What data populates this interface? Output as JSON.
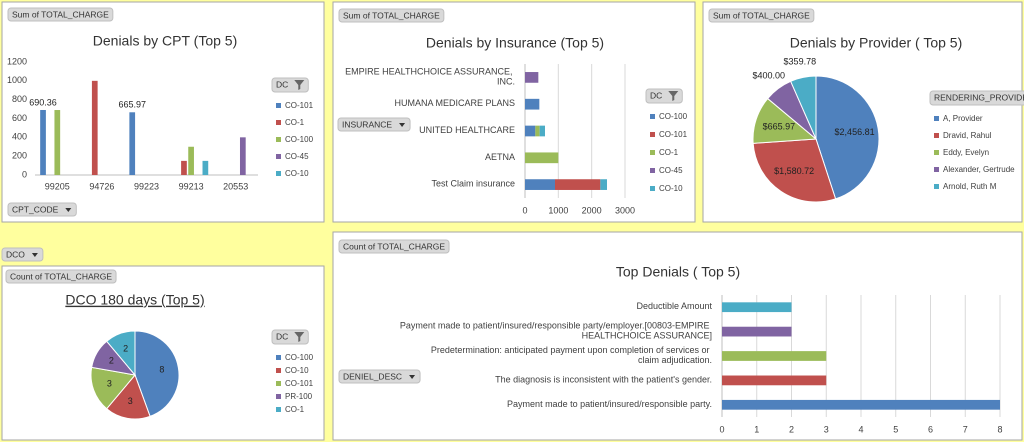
{
  "chart_data": [
    {
      "type": "bar",
      "title": "Denials by CPT (Top 5)",
      "value_field": "Sum of TOTAL_CHARGE",
      "axis_field": "CPT_CODE",
      "legend_title": "DC",
      "categories": [
        "99205",
        "94726",
        "99223",
        "99213",
        "20553"
      ],
      "series": [
        {
          "name": "CO-101",
          "color": "#4f81bd",
          "values": [
            690.36,
            null,
            665.97,
            null,
            null
          ],
          "labels": true
        },
        {
          "name": "CO-1",
          "color": "#c0504d",
          "values": [
            null,
            1000,
            null,
            150,
            null
          ]
        },
        {
          "name": "CO-100",
          "color": "#9bbb59",
          "values": [
            690,
            null,
            null,
            300,
            null
          ]
        },
        {
          "name": "CO-45",
          "color": "#8064a2",
          "values": [
            null,
            null,
            null,
            null,
            400
          ]
        },
        {
          "name": "CO-10",
          "color": "#4bacc6",
          "values": [
            null,
            null,
            null,
            150,
            null
          ]
        }
      ],
      "ylim": [
        0,
        1200
      ],
      "yticks": [
        0,
        200,
        400,
        600,
        800,
        1000,
        1200
      ],
      "grid": false
    },
    {
      "type": "bar",
      "orientation": "horizontal",
      "stacked": true,
      "title": "Denials by Insurance (Top 5)",
      "value_field": "Sum of TOTAL_CHARGE",
      "axis_field": "INSURANCE",
      "legend_title": "DC",
      "categories": [
        "Test Claim insurance",
        "AETNA",
        "UNITED HEALTHCARE",
        "HUMANA MEDICARE PLANS",
        "EMPIRE HEALTHCHOICE ASSURANCE, INC."
      ],
      "series": [
        {
          "name": "CO-100",
          "color": "#4f81bd",
          "values": [
            900,
            null,
            310,
            430,
            null
          ]
        },
        {
          "name": "CO-101",
          "color": "#c0504d",
          "values": [
            1360,
            null,
            null,
            null,
            null
          ]
        },
        {
          "name": "CO-1",
          "color": "#9bbb59",
          "values": [
            null,
            1000,
            130,
            null,
            null
          ]
        },
        {
          "name": "CO-45",
          "color": "#8064a2",
          "values": [
            null,
            null,
            null,
            null,
            400
          ]
        },
        {
          "name": "CO-10",
          "color": "#4bacc6",
          "values": [
            200,
            null,
            160,
            null,
            null
          ]
        }
      ],
      "xlim": [
        0,
        3000
      ],
      "xticks": [
        0,
        1000,
        2000,
        3000
      ],
      "grid": true
    },
    {
      "type": "pie",
      "title": "Denials by Provider ( Top 5)",
      "value_field": "Sum of TOTAL_CHARGE",
      "legend_title": "RENDERING_PROVIDER",
      "categories": [
        "A, Provider",
        "Dravid, Rahul",
        "Eddy, Evelyn",
        "Alexander, Gertrude",
        "Arnold, Ruth M"
      ],
      "values": [
        2456.81,
        1580.72,
        665.97,
        400,
        359.78
      ],
      "value_labels": [
        "$2,456.81",
        "$1,580.72",
        "$665.97",
        "$400.00",
        "$359.78"
      ],
      "colors": [
        "#4f81bd",
        "#c0504d",
        "#9bbb59",
        "#8064a2",
        "#4bacc6"
      ]
    },
    {
      "type": "pie",
      "title": "DCO 180 days (Top 5)",
      "page_filter": "DCO",
      "value_field": "Count of TOTAL_CHARGE",
      "legend_title": "DC",
      "categories": [
        "CO-100",
        "CO-10",
        "CO-101",
        "PR-100",
        "CO-1"
      ],
      "values": [
        8,
        3,
        3,
        2,
        2
      ],
      "colors": [
        "#4f81bd",
        "#c0504d",
        "#9bbb59",
        "#8064a2",
        "#4bacc6"
      ]
    },
    {
      "type": "bar",
      "orientation": "horizontal",
      "title": "Top Denials ( Top 5)",
      "value_field": "Count of TOTAL_CHARGE",
      "axis_field": "DENIEL_DESC",
      "categories": [
        "Payment made to patient/insured/responsible party.",
        "The diagnosis is inconsistent with the patient's gender.",
        "Predetermination: anticipated payment upon completion of services or claim adjudication.",
        "Payment made to patient/insured/responsible party/employer.[00803-EMPIRE HEALTHCHOICE ASSURANCE]",
        "Deductible Amount"
      ],
      "values": [
        8,
        3,
        3,
        2,
        2
      ],
      "colors": [
        "#4f81bd",
        "#c0504d",
        "#9bbb59",
        "#8064a2",
        "#4bacc6"
      ],
      "xlim": [
        0,
        8
      ],
      "xticks": [
        0,
        1,
        2,
        3,
        4,
        5,
        6,
        7,
        8
      ],
      "grid": true
    }
  ]
}
